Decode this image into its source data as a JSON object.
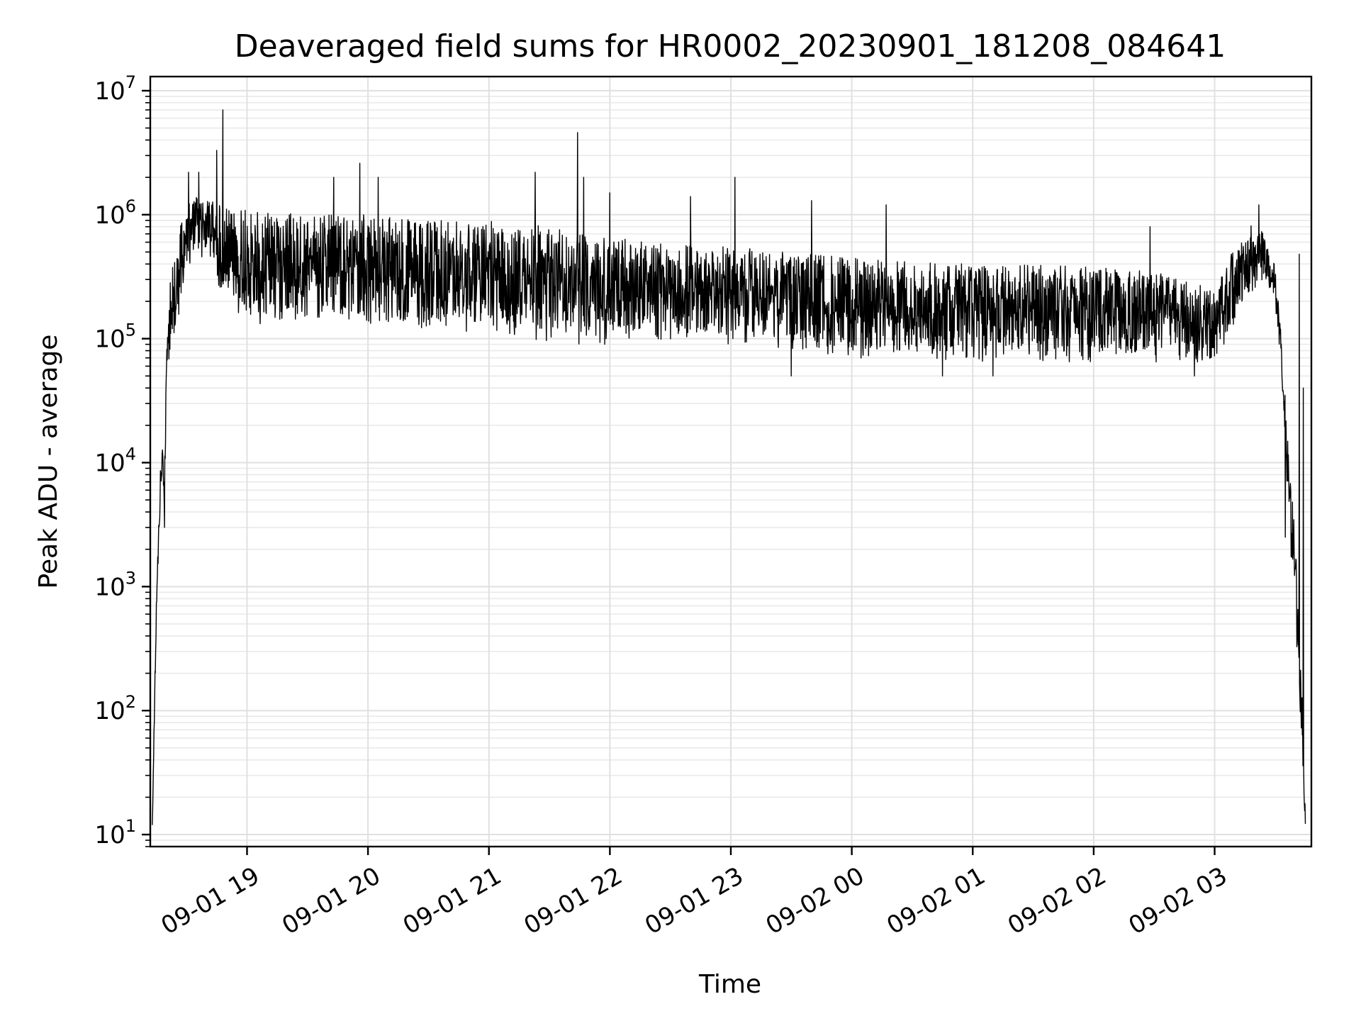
{
  "chart_data": {
    "type": "line",
    "title": "Deaveraged field sums for HR0002_20230901_181208_084641",
    "xlabel": "Time",
    "ylabel": "Peak ADU - average",
    "yscale": "log",
    "ylim": [
      8,
      13000000
    ],
    "xlim": [
      "2023-09-01 18:12",
      "2023-09-02 03:48"
    ],
    "grid": true,
    "x_ticks": [
      "09-01 19",
      "09-01 20",
      "09-01 21",
      "09-01 22",
      "09-01 23",
      "09-02 00",
      "09-02 01",
      "09-02 02",
      "09-02 03"
    ],
    "y_ticks": [
      {
        "base": "10",
        "exp": "1",
        "value": 10
      },
      {
        "base": "10",
        "exp": "2",
        "value": 100
      },
      {
        "base": "10",
        "exp": "3",
        "value": 1000
      },
      {
        "base": "10",
        "exp": "4",
        "value": 10000
      },
      {
        "base": "10",
        "exp": "5",
        "value": 100000
      },
      {
        "base": "10",
        "exp": "6",
        "value": 1000000
      },
      {
        "base": "10",
        "exp": "7",
        "value": 10000000
      }
    ],
    "series": [
      {
        "color": "#000000",
        "envelope": [
          {
            "t": "2023-09-01 18:13",
            "low": 10,
            "high": 15
          },
          {
            "t": "2023-09-01 18:15",
            "low": 500,
            "high": 800
          },
          {
            "t": "2023-09-01 18:17",
            "low": 5000,
            "high": 9000
          },
          {
            "t": "2023-09-01 18:18",
            "low": 9000,
            "high": 13000
          },
          {
            "t": "2023-09-01 18:19",
            "low": 3000,
            "high": 10000
          },
          {
            "t": "2023-09-01 18:20",
            "low": 30000,
            "high": 80000
          },
          {
            "t": "2023-09-01 18:22",
            "low": 80000,
            "high": 300000
          },
          {
            "t": "2023-09-01 18:25",
            "low": 120000,
            "high": 600000
          },
          {
            "t": "2023-09-01 18:30",
            "low": 300000,
            "high": 1300000
          },
          {
            "t": "2023-09-01 18:35",
            "low": 500000,
            "high": 1400000
          },
          {
            "t": "2023-09-01 18:40",
            "low": 400000,
            "high": 1300000
          },
          {
            "t": "2023-09-01 18:50",
            "low": 200000,
            "high": 1200000
          },
          {
            "t": "2023-09-01 19:00",
            "low": 130000,
            "high": 1100000
          },
          {
            "t": "2023-09-01 19:30",
            "low": 130000,
            "high": 1000000
          },
          {
            "t": "2023-09-01 20:00",
            "low": 120000,
            "high": 1000000
          },
          {
            "t": "2023-09-01 20:30",
            "low": 110000,
            "high": 900000
          },
          {
            "t": "2023-09-01 21:00",
            "low": 110000,
            "high": 900000
          },
          {
            "t": "2023-09-01 21:30",
            "low": 90000,
            "high": 800000
          },
          {
            "t": "2023-09-01 22:00",
            "low": 90000,
            "high": 650000
          },
          {
            "t": "2023-09-01 22:30",
            "low": 90000,
            "high": 600000
          },
          {
            "t": "2023-09-01 23:00",
            "low": 90000,
            "high": 550000
          },
          {
            "t": "2023-09-01 23:30",
            "low": 80000,
            "high": 500000
          },
          {
            "t": "2023-09-02 00:00",
            "low": 70000,
            "high": 450000
          },
          {
            "t": "2023-09-02 00:30",
            "low": 65000,
            "high": 420000
          },
          {
            "t": "2023-09-02 01:00",
            "low": 65000,
            "high": 400000
          },
          {
            "t": "2023-09-02 01:30",
            "low": 65000,
            "high": 400000
          },
          {
            "t": "2023-09-02 02:00",
            "low": 65000,
            "high": 380000
          },
          {
            "t": "2023-09-02 02:30",
            "low": 65000,
            "high": 350000
          },
          {
            "t": "2023-09-02 03:00",
            "low": 60000,
            "high": 250000
          },
          {
            "t": "2023-09-02 03:10",
            "low": 130000,
            "high": 550000
          },
          {
            "t": "2023-09-02 03:20",
            "low": 250000,
            "high": 900000
          },
          {
            "t": "2023-09-02 03:25",
            "low": 300000,
            "high": 700000
          },
          {
            "t": "2023-09-02 03:30",
            "low": 200000,
            "high": 400000
          },
          {
            "t": "2023-09-02 03:34",
            "low": 30000,
            "high": 80000
          },
          {
            "t": "2023-09-02 03:37",
            "low": 3000,
            "high": 9000
          },
          {
            "t": "2023-09-02 03:40",
            "low": 500,
            "high": 3000
          },
          {
            "t": "2023-09-02 03:43",
            "low": 50,
            "high": 200
          },
          {
            "t": "2023-09-02 03:45",
            "low": 10,
            "high": 15
          }
        ],
        "spikes": [
          {
            "t": "2023-09-01 18:26",
            "value": 400000
          },
          {
            "t": "2023-09-01 18:31",
            "value": 2200000
          },
          {
            "t": "2023-09-01 18:36",
            "value": 2200000
          },
          {
            "t": "2023-09-01 18:45",
            "value": 3300000
          },
          {
            "t": "2023-09-01 18:48",
            "value": 7000000
          },
          {
            "t": "2023-09-01 19:43",
            "value": 2000000
          },
          {
            "t": "2023-09-01 19:56",
            "value": 2600000
          },
          {
            "t": "2023-09-01 20:05",
            "value": 2000000
          },
          {
            "t": "2023-09-01 21:23",
            "value": 2200000
          },
          {
            "t": "2023-09-01 21:44",
            "value": 4600000
          },
          {
            "t": "2023-09-01 21:47",
            "value": 2000000
          },
          {
            "t": "2023-09-01 22:00",
            "value": 1500000
          },
          {
            "t": "2023-09-01 22:40",
            "value": 1400000
          },
          {
            "t": "2023-09-01 23:02",
            "value": 2000000
          },
          {
            "t": "2023-09-01 23:40",
            "value": 1300000
          },
          {
            "t": "2023-09-02 00:17",
            "value": 1200000
          },
          {
            "t": "2023-09-02 02:28",
            "value": 800000
          },
          {
            "t": "2023-09-02 03:22",
            "value": 1200000
          },
          {
            "t": "2023-09-02 03:42",
            "value": 480000
          },
          {
            "t": "2023-09-02 03:44",
            "value": 40000
          }
        ],
        "dips": [
          {
            "t": "2023-09-01 18:19",
            "value": 3000
          },
          {
            "t": "2023-09-01 23:30",
            "value": 50000
          },
          {
            "t": "2023-09-02 00:45",
            "value": 50000
          },
          {
            "t": "2023-09-02 01:10",
            "value": 50000
          },
          {
            "t": "2023-09-02 02:50",
            "value": 50000
          },
          {
            "t": "2023-09-02 03:35",
            "value": 2500
          }
        ]
      }
    ]
  }
}
